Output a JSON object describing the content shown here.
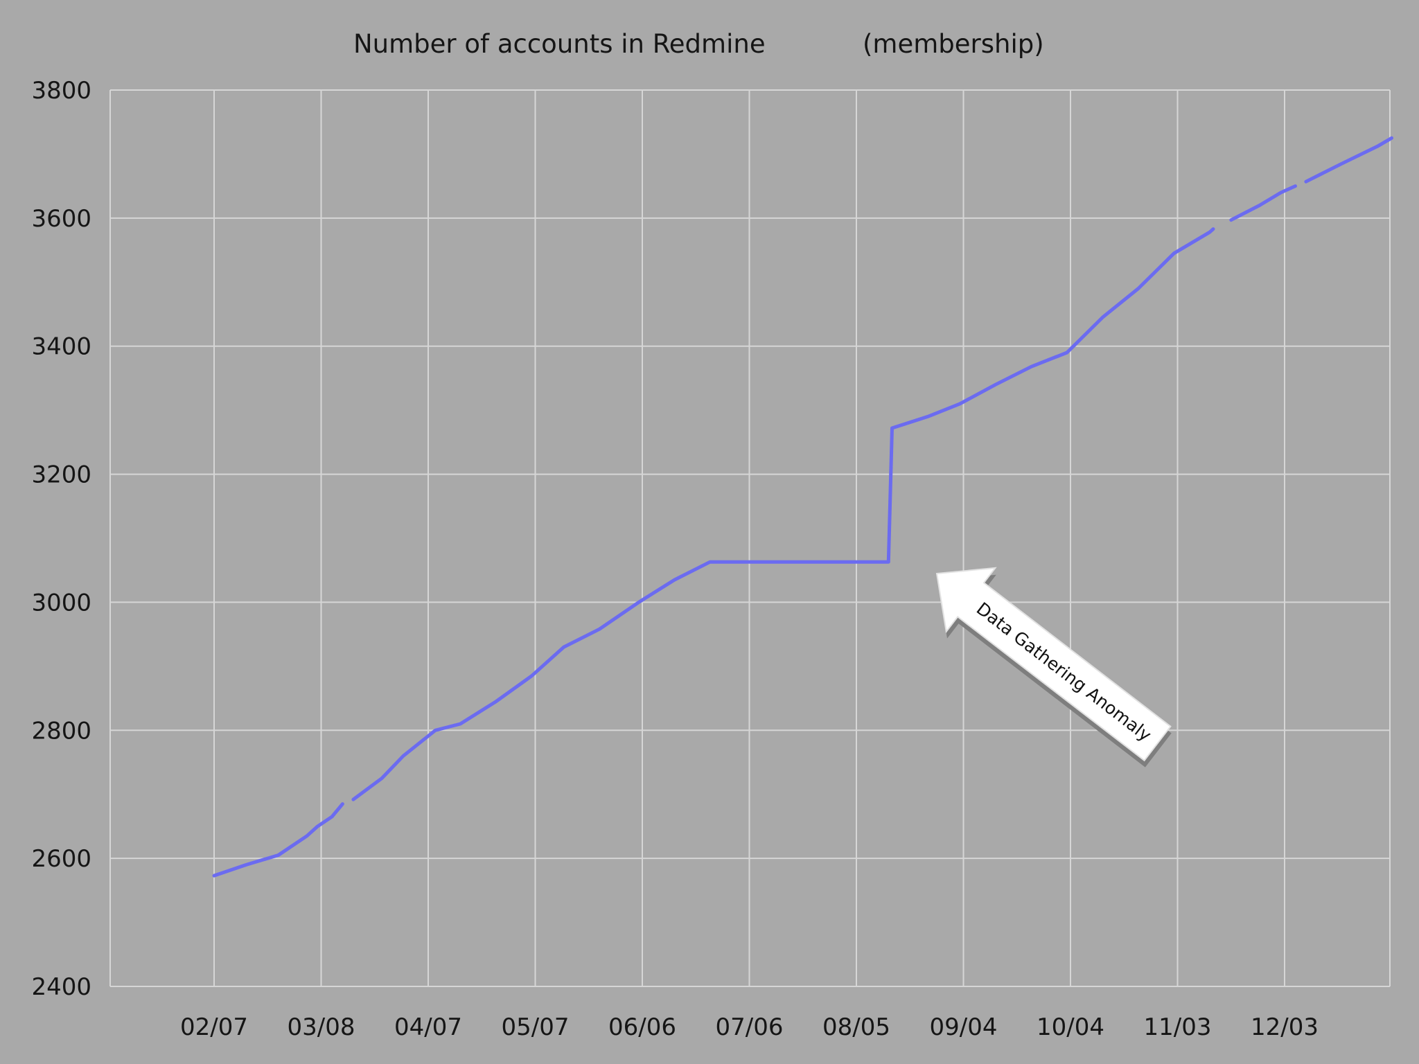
{
  "chart_data": {
    "type": "line",
    "title": "Number of accounts in Redmine",
    "subtitle": "(membership)",
    "xlabel": "",
    "ylabel": "",
    "ylim": [
      2400,
      3800
    ],
    "y_ticks": [
      2400,
      2600,
      2800,
      3000,
      3200,
      3400,
      3600,
      3800
    ],
    "x_tick_labels": [
      "02/07",
      "03/08",
      "04/07",
      "05/07",
      "06/06",
      "07/06",
      "08/05",
      "09/04",
      "10/04",
      "11/03",
      "12/03"
    ],
    "grid": true,
    "legend": "none",
    "series_color": "#6b6bf0",
    "series": [
      {
        "segments": [
          [
            [
              "02/07",
              2573
            ],
            [
              "02/16",
              2590
            ],
            [
              "02/25",
              2605
            ],
            [
              "03/05",
              2635
            ],
            [
              "03/08",
              2650
            ],
            [
              "03/12",
              2665
            ],
            [
              "03/15",
              2685
            ]
          ],
          [
            [
              "03/18",
              2692
            ],
            [
              "03/26",
              2725
            ],
            [
              "04/01",
              2760
            ],
            [
              "04/10",
              2800
            ],
            [
              "04/17",
              2810
            ],
            [
              "04/27",
              2845
            ],
            [
              "05/07",
              2885
            ],
            [
              "05/16",
              2930
            ],
            [
              "05/26",
              2958
            ],
            [
              "06/06",
              3000
            ],
            [
              "06/16",
              3035
            ],
            [
              "06/26",
              3063
            ],
            [
              "08/05",
              3063
            ],
            [
              "08/15",
              3063
            ],
            [
              "08/16",
              3272
            ],
            [
              "08/26",
              3290
            ],
            [
              "09/04",
              3310
            ],
            [
              "09/14",
              3340
            ],
            [
              "09/24",
              3368
            ],
            [
              "10/04",
              3390
            ],
            [
              "10/14",
              3445
            ],
            [
              "10/24",
              3490
            ],
            [
              "11/03",
              3545
            ],
            [
              "11/13",
              3578
            ],
            [
              "11/14",
              3583
            ]
          ],
          [
            [
              "11/19",
              3597
            ],
            [
              "11/27",
              3620
            ],
            [
              "12/03",
              3640
            ],
            [
              "12/07",
              3650
            ]
          ],
          [
            [
              "12/10",
              3657
            ],
            [
              "12/20",
              3685
            ],
            [
              "12/30",
              3712
            ],
            [
              "01/03",
              3725
            ]
          ]
        ]
      }
    ],
    "annotations": [
      {
        "text": "Data Gathering Anomaly",
        "points_to": [
          "08/15",
          3063
        ]
      }
    ]
  }
}
